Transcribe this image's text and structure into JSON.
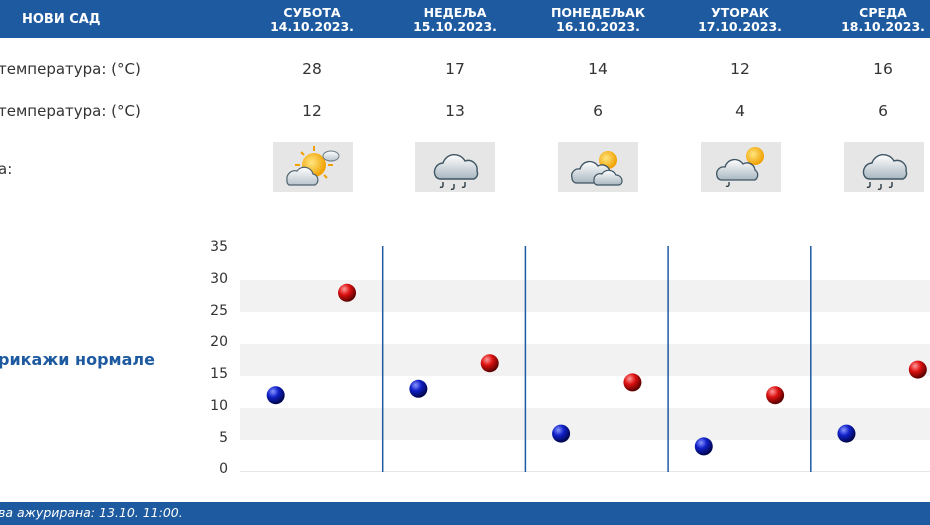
{
  "header": {
    "city": "НОВИ САД",
    "days": [
      {
        "name": "СУБОТА",
        "date": "14.10.2023."
      },
      {
        "name": "НЕДЕЉА",
        "date": "15.10.2023."
      },
      {
        "name": "ПОНЕДЕЉАК",
        "date": "16.10.2023."
      },
      {
        "name": "УТОРАК",
        "date": "17.10.2023."
      },
      {
        "name": "СРЕДА",
        "date": "18.10.2023."
      }
    ]
  },
  "rows": {
    "max_label": "температура: (°C)",
    "min_label": "температура: (°C)",
    "weather_label": "а:"
  },
  "max_temps": [
    "28",
    "17",
    "14",
    "12",
    "16"
  ],
  "min_temps": [
    "12",
    "13",
    "6",
    "4",
    "6"
  ],
  "weather_icons": [
    "sun-cloud-icon",
    "rain-cloud-icon",
    "cloud-sun-icon",
    "cloud-sun-drizzle-icon",
    "rain-cloud-icon"
  ],
  "normals_link": "рикажи нормале",
  "footer": {
    "updated": "ва ажурирана:  13.10. 11:00."
  },
  "colors": {
    "header": "#1e5aa0",
    "max_marker": "#cc0000",
    "min_marker": "#0a1aa8",
    "band": "#f2f2f2"
  },
  "chart_data": {
    "type": "scatter",
    "categories": [
      "14.10.2023.",
      "15.10.2023.",
      "16.10.2023.",
      "17.10.2023.",
      "18.10.2023."
    ],
    "series": [
      {
        "values": [
          12,
          13,
          6,
          4,
          6
        ]
      },
      {
        "values": [
          28,
          17,
          14,
          12,
          16
        ]
      }
    ],
    "yticks": [
      "35",
      "30",
      "25",
      "20",
      "15",
      "10",
      "5",
      "0"
    ],
    "ylim": [
      0,
      35
    ],
    "grid": "alternating bands"
  }
}
